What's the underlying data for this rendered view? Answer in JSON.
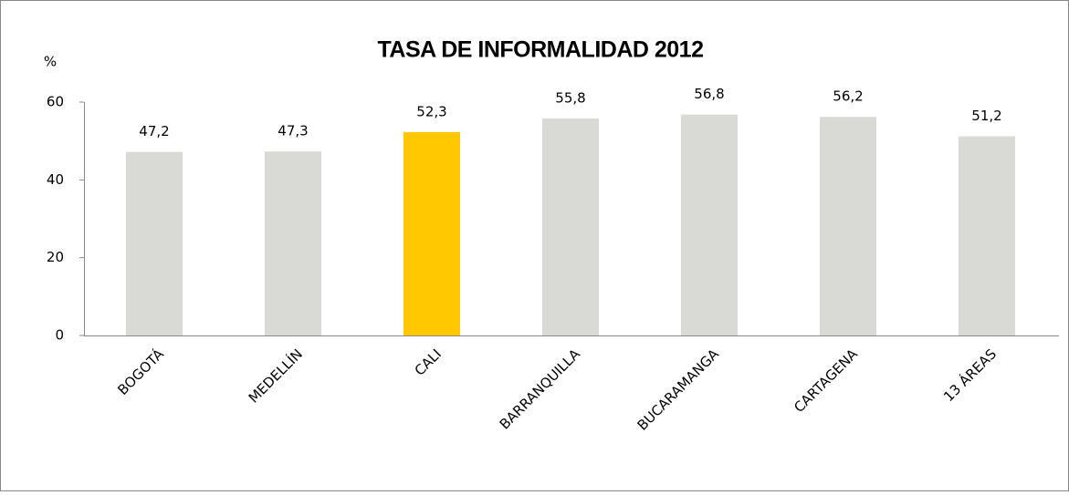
{
  "chart_data": {
    "type": "bar",
    "title": "TASA DE INFORMALIDAD 2012",
    "y_label": "%",
    "categories": [
      "BOGOTÁ",
      "MEDELLÍN",
      "CALI",
      "BARRANQUILLA",
      "BUCARAMANGA",
      "CARTAGENA",
      "13 ÁREAS"
    ],
    "values": [
      47.2,
      47.3,
      52.3,
      55.8,
      56.8,
      56.2,
      51.2
    ],
    "value_labels": [
      "47,2",
      "47,3",
      "52,3",
      "55,8",
      "56,8",
      "56,2",
      "51,2"
    ],
    "colors": [
      "#d9d9d6",
      "#d9d9d6",
      "#ffc800",
      "#d9d9d6",
      "#d9d9d6",
      "#d9d9d6",
      "#d9d9d6"
    ],
    "ylim": [
      0,
      60
    ],
    "yticks": [
      0,
      20,
      40,
      60
    ],
    "grid": false
  }
}
